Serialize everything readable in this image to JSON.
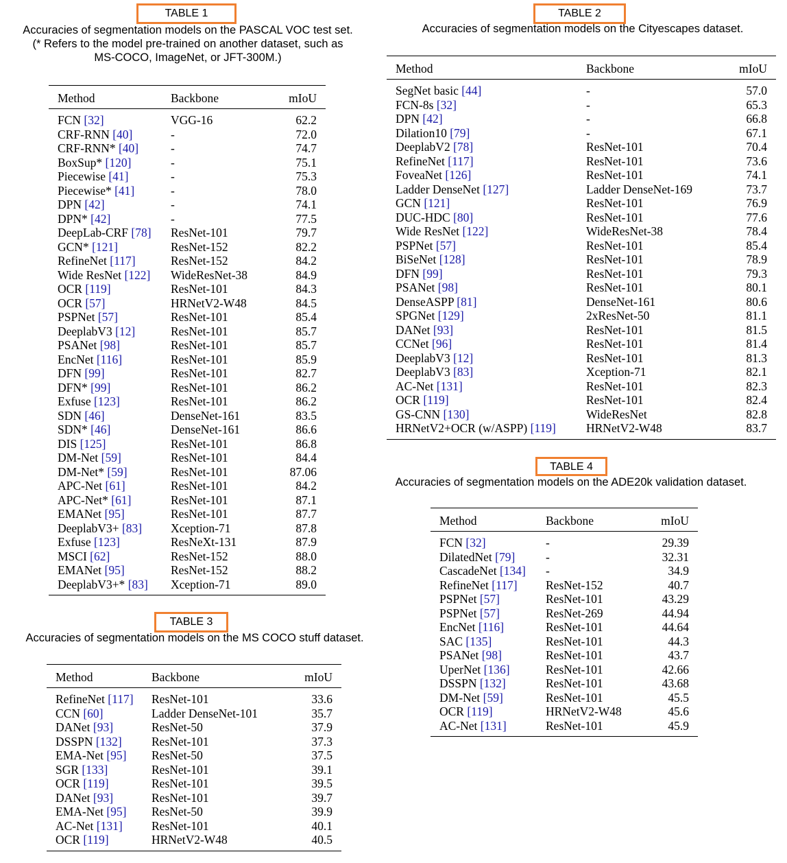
{
  "tables": [
    {
      "tag": "TABLE 1",
      "caption_lines": [
        "Accuracies of segmentation models on the PASCAL VOC test set.",
        "(* Refers to the model pre-trained on another dataset, such as",
        "MS-COCO, ImageNet, or JFT-300M.)"
      ],
      "headers": [
        "Method",
        "Backbone",
        "mIoU"
      ],
      "rows": [
        {
          "method": "FCN ",
          "ref": "[32]",
          "backbone": "VGG-16",
          "miou": "62.2"
        },
        {
          "method": "CRF-RNN ",
          "ref": "[40]",
          "backbone": "-",
          "miou": "72.0"
        },
        {
          "method": "CRF-RNN* ",
          "ref": "[40]",
          "backbone": "-",
          "miou": "74.7"
        },
        {
          "method": "BoxSup* ",
          "ref": "[120]",
          "backbone": "-",
          "miou": "75.1"
        },
        {
          "method": "Piecewise ",
          "ref": "[41]",
          "backbone": "-",
          "miou": "75.3"
        },
        {
          "method": "Piecewise* ",
          "ref": "[41]",
          "backbone": "-",
          "miou": "78.0"
        },
        {
          "method": "DPN ",
          "ref": "[42]",
          "backbone": "-",
          "miou": "74.1"
        },
        {
          "method": "DPN* ",
          "ref": "[42]",
          "backbone": "-",
          "miou": "77.5"
        },
        {
          "method": "DeepLab-CRF ",
          "ref": "[78]",
          "backbone": "ResNet-101",
          "miou": "79.7"
        },
        {
          "method": "GCN* ",
          "ref": "[121]",
          "backbone": "ResNet-152",
          "miou": "82.2"
        },
        {
          "method": "RefineNet ",
          "ref": "[117]",
          "backbone": "ResNet-152",
          "miou": "84.2"
        },
        {
          "method": "Wide ResNet ",
          "ref": "[122]",
          "backbone": "WideResNet-38",
          "miou": "84.9"
        },
        {
          "method": "OCR ",
          "ref": "[119]",
          "backbone": "ResNet-101",
          "miou": "84.3"
        },
        {
          "method": "OCR ",
          "ref": "[57]",
          "backbone": "HRNetV2-W48",
          "miou": "84.5"
        },
        {
          "method": "PSPNet ",
          "ref": "[57]",
          "backbone": "ResNet-101",
          "miou": "85.4"
        },
        {
          "method": "DeeplabV3 ",
          "ref": "[12]",
          "backbone": "ResNet-101",
          "miou": "85.7"
        },
        {
          "method": "PSANet ",
          "ref": "[98]",
          "backbone": "ResNet-101",
          "miou": "85.7"
        },
        {
          "method": "EncNet ",
          "ref": "[116]",
          "backbone": "ResNet-101",
          "miou": "85.9"
        },
        {
          "method": "DFN ",
          "ref": "[99]",
          "backbone": "ResNet-101",
          "miou": "82.7"
        },
        {
          "method": "DFN* ",
          "ref": "[99]",
          "backbone": "ResNet-101",
          "miou": "86.2"
        },
        {
          "method": "Exfuse ",
          "ref": "[123]",
          "backbone": "ResNet-101",
          "miou": "86.2"
        },
        {
          "method": "SDN ",
          "ref": "[46]",
          "backbone": "DenseNet-161",
          "miou": "83.5"
        },
        {
          "method": "SDN* ",
          "ref": "[46]",
          "backbone": "DenseNet-161",
          "miou": "86.6"
        },
        {
          "method": "DIS ",
          "ref": "[125]",
          "backbone": "ResNet-101",
          "miou": "86.8"
        },
        {
          "method": "DM-Net ",
          "ref": "[59]",
          "backbone": "ResNet-101",
          "miou": "84.4"
        },
        {
          "method": "DM-Net* ",
          "ref": "[59]",
          "backbone": "ResNet-101",
          "miou": "87.06"
        },
        {
          "method": "APC-Net ",
          "ref": "[61]",
          "backbone": "ResNet-101",
          "miou": "84.2"
        },
        {
          "method": "APC-Net* ",
          "ref": "[61]",
          "backbone": "ResNet-101",
          "miou": "87.1"
        },
        {
          "method": "EMANet ",
          "ref": "[95]",
          "backbone": "ResNet-101",
          "miou": "87.7"
        },
        {
          "method": "DeeplabV3+ ",
          "ref": "[83]",
          "backbone": "Xception-71",
          "miou": "87.8"
        },
        {
          "method": "Exfuse ",
          "ref": "[123]",
          "backbone": "ResNeXt-131",
          "miou": "87.9"
        },
        {
          "method": "MSCI ",
          "ref": "[62]",
          "backbone": "ResNet-152",
          "miou": "88.0"
        },
        {
          "method": "EMANet ",
          "ref": "[95]",
          "backbone": "ResNet-152",
          "miou": "88.2"
        },
        {
          "method": "DeeplabV3+* ",
          "ref": "[83]",
          "backbone": "Xception-71",
          "miou": "89.0"
        }
      ]
    },
    {
      "tag": "TABLE 2",
      "caption_lines": [
        "Accuracies of segmentation models on the Cityescapes dataset."
      ],
      "headers": [
        "Method",
        "Backbone",
        "mIoU"
      ],
      "rows": [
        {
          "method": "SegNet basic ",
          "ref": "[44]",
          "backbone": "-",
          "miou": "57.0"
        },
        {
          "method": "FCN-8s ",
          "ref": "[32]",
          "backbone": "-",
          "miou": "65.3"
        },
        {
          "method": "DPN ",
          "ref": "[42]",
          "backbone": "-",
          "miou": "66.8"
        },
        {
          "method": "Dilation10 ",
          "ref": "[79]",
          "backbone": "-",
          "miou": "67.1"
        },
        {
          "method": "DeeplabV2 ",
          "ref": "[78]",
          "backbone": "ResNet-101",
          "miou": "70.4"
        },
        {
          "method": "RefineNet ",
          "ref": "[117]",
          "backbone": "ResNet-101",
          "miou": "73.6"
        },
        {
          "method": "FoveaNet ",
          "ref": "[126]",
          "backbone": "ResNet-101",
          "miou": "74.1"
        },
        {
          "method": "Ladder DenseNet ",
          "ref": "[127]",
          "backbone": "Ladder DenseNet-169",
          "miou": "73.7"
        },
        {
          "method": "GCN ",
          "ref": "[121]",
          "backbone": "ResNet-101",
          "miou": "76.9"
        },
        {
          "method": "DUC-HDC ",
          "ref": "[80]",
          "backbone": "ResNet-101",
          "miou": "77.6"
        },
        {
          "method": "Wide ResNet ",
          "ref": "[122]",
          "backbone": "WideResNet-38",
          "miou": "78.4"
        },
        {
          "method": "PSPNet ",
          "ref": "[57]",
          "backbone": "ResNet-101",
          "miou": "85.4"
        },
        {
          "method": "BiSeNet ",
          "ref": "[128]",
          "backbone": "ResNet-101",
          "miou": "78.9"
        },
        {
          "method": "DFN ",
          "ref": "[99]",
          "backbone": "ResNet-101",
          "miou": "79.3"
        },
        {
          "method": "PSANet ",
          "ref": "[98]",
          "backbone": "ResNet-101",
          "miou": "80.1"
        },
        {
          "method": "DenseASPP ",
          "ref": "[81]",
          "backbone": "DenseNet-161",
          "miou": "80.6"
        },
        {
          "method": "SPGNet ",
          "ref": "[129]",
          "backbone": "2xResNet-50",
          "miou": "81.1"
        },
        {
          "method": "DANet ",
          "ref": "[93]",
          "backbone": "ResNet-101",
          "miou": "81.5"
        },
        {
          "method": "CCNet ",
          "ref": "[96]",
          "backbone": "ResNet-101",
          "miou": "81.4"
        },
        {
          "method": "DeeplabV3 ",
          "ref": "[12]",
          "backbone": "ResNet-101",
          "miou": "81.3"
        },
        {
          "method": "DeeplabV3 ",
          "ref": "[83]",
          "backbone": "Xception-71",
          "miou": "82.1"
        },
        {
          "method": "AC-Net ",
          "ref": "[131]",
          "backbone": "ResNet-101",
          "miou": "82.3"
        },
        {
          "method": "OCR ",
          "ref": "[119]",
          "backbone": "ResNet-101",
          "miou": "82.4"
        },
        {
          "method": "GS-CNN ",
          "ref": "[130]",
          "backbone": "WideResNet",
          "miou": "82.8"
        },
        {
          "method": "HRNetV2+OCR (w/ASPP) ",
          "ref": "[119]",
          "backbone": "HRNetV2-W48",
          "miou": "83.7"
        }
      ]
    },
    {
      "tag": "TABLE 3",
      "caption_lines": [
        "Accuracies of segmentation models on the MS COCO stuff dataset."
      ],
      "headers": [
        "Method",
        "Backbone",
        "mIoU"
      ],
      "rows": [
        {
          "method": "RefineNet ",
          "ref": "[117]",
          "backbone": "ResNet-101",
          "miou": "33.6"
        },
        {
          "method": "CCN ",
          "ref": "[60]",
          "backbone": "Ladder DenseNet-101",
          "miou": "35.7"
        },
        {
          "method": "DANet ",
          "ref": "[93]",
          "backbone": "ResNet-50",
          "miou": "37.9"
        },
        {
          "method": "DSSPN ",
          "ref": "[132]",
          "backbone": "ResNet-101",
          "miou": "37.3"
        },
        {
          "method": "EMA-Net ",
          "ref": "[95]",
          "backbone": "ResNet-50",
          "miou": "37.5"
        },
        {
          "method": "SGR ",
          "ref": "[133]",
          "backbone": "ResNet-101",
          "miou": "39.1"
        },
        {
          "method": "OCR ",
          "ref": "[119]",
          "backbone": "ResNet-101",
          "miou": "39.5"
        },
        {
          "method": "DANet ",
          "ref": "[93]",
          "backbone": "ResNet-101",
          "miou": "39.7"
        },
        {
          "method": "EMA-Net ",
          "ref": "[95]",
          "backbone": "ResNet-50",
          "miou": "39.9"
        },
        {
          "method": "AC-Net ",
          "ref": "[131]",
          "backbone": "ResNet-101",
          "miou": "40.1"
        },
        {
          "method": "OCR ",
          "ref": "[119]",
          "backbone": "HRNetV2-W48",
          "miou": "40.5"
        }
      ]
    },
    {
      "tag": "TABLE 4",
      "caption_lines": [
        "Accuracies  of segmentation models on the ADE20k validation dataset."
      ],
      "headers": [
        "Method",
        "Backbone",
        "mIoU"
      ],
      "rows": [
        {
          "method": "FCN ",
          "ref": "[32]",
          "backbone": "-",
          "miou": "29.39"
        },
        {
          "method": "DilatedNet ",
          "ref": "[79]",
          "backbone": "-",
          "miou": "32.31"
        },
        {
          "method": "CascadeNet ",
          "ref": "[134]",
          "backbone": "-",
          "miou": "34.9"
        },
        {
          "method": "RefineNet ",
          "ref": "[117]",
          "backbone": "ResNet-152",
          "miou": "40.7"
        },
        {
          "method": "PSPNet ",
          "ref": "[57]",
          "backbone": "ResNet-101",
          "miou": "43.29"
        },
        {
          "method": "PSPNet ",
          "ref": "[57]",
          "backbone": "ResNet-269",
          "miou": "44.94"
        },
        {
          "method": "EncNet ",
          "ref": "[116]",
          "backbone": "ResNet-101",
          "miou": "44.64"
        },
        {
          "method": "SAC ",
          "ref": "[135]",
          "backbone": "ResNet-101",
          "miou": "44.3"
        },
        {
          "method": "PSANet ",
          "ref": "[98]",
          "backbone": "ResNet-101",
          "miou": "43.7"
        },
        {
          "method": "UperNet ",
          "ref": "[136]",
          "backbone": "ResNet-101",
          "miou": "42.66"
        },
        {
          "method": "DSSPN ",
          "ref": "[132]",
          "backbone": "ResNet-101",
          "miou": "43.68"
        },
        {
          "method": "DM-Net ",
          "ref": "[59]",
          "backbone": "ResNet-101",
          "miou": "45.5"
        },
        {
          "method": "OCR ",
          "ref": "[119]",
          "backbone": "HRNetV2-W48",
          "miou": "45.6"
        },
        {
          "method": "AC-Net ",
          "ref": "[131]",
          "backbone": "ResNet-101",
          "miou": "45.9"
        }
      ]
    }
  ],
  "colors": {
    "tag_border": "#f08030",
    "ref_link": "#1a1aa8"
  }
}
